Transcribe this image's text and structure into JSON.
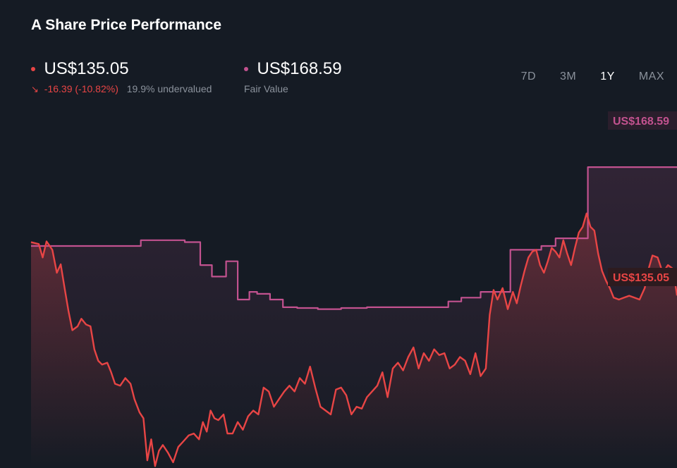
{
  "header": {
    "title": "A Share Price Performance"
  },
  "price": {
    "value": "US$135.05",
    "change": "-16.39 (-10.82%)",
    "valuation_note": "19.9% undervalued",
    "color": "#e84545",
    "icon": "arrow-down-right-icon"
  },
  "fair_value": {
    "value": "US$168.59",
    "label": "Fair Value",
    "color": "#c2528f"
  },
  "tabs": [
    {
      "label": "7D",
      "active": false
    },
    {
      "label": "3M",
      "active": false
    },
    {
      "label": "1Y",
      "active": true
    },
    {
      "label": "MAX",
      "active": false
    }
  ],
  "chart_data": {
    "type": "line",
    "xlim": [
      0,
      1
    ],
    "ylim": [
      90,
      185
    ],
    "series": [
      {
        "name": "Share Price",
        "color": "#e84545",
        "points": [
          [
            0.0,
            149.0
          ],
          [
            0.012,
            148.5
          ],
          [
            0.018,
            145.0
          ],
          [
            0.024,
            149.2
          ],
          [
            0.033,
            147.0
          ],
          [
            0.04,
            141.0
          ],
          [
            0.046,
            143.2
          ],
          [
            0.052,
            137.0
          ],
          [
            0.058,
            131.0
          ],
          [
            0.064,
            126.0
          ],
          [
            0.072,
            127.0
          ],
          [
            0.078,
            129.0
          ],
          [
            0.085,
            127.5
          ],
          [
            0.092,
            127.0
          ],
          [
            0.098,
            121.0
          ],
          [
            0.104,
            118.0
          ],
          [
            0.11,
            117.0
          ],
          [
            0.118,
            117.5
          ],
          [
            0.124,
            115.0
          ],
          [
            0.13,
            112.0
          ],
          [
            0.138,
            111.5
          ],
          [
            0.146,
            113.5
          ],
          [
            0.154,
            112.0
          ],
          [
            0.16,
            108.0
          ],
          [
            0.168,
            104.5
          ],
          [
            0.174,
            103.0
          ],
          [
            0.18,
            92.0
          ],
          [
            0.186,
            97.5
          ],
          [
            0.192,
            90.5
          ],
          [
            0.198,
            94.5
          ],
          [
            0.204,
            96.0
          ],
          [
            0.212,
            94.0
          ],
          [
            0.22,
            91.5
          ],
          [
            0.228,
            95.5
          ],
          [
            0.236,
            97.0
          ],
          [
            0.244,
            98.5
          ],
          [
            0.252,
            99.0
          ],
          [
            0.26,
            97.5
          ],
          [
            0.266,
            102.0
          ],
          [
            0.272,
            99.5
          ],
          [
            0.278,
            105.0
          ],
          [
            0.284,
            103.0
          ],
          [
            0.29,
            102.5
          ],
          [
            0.298,
            104.0
          ],
          [
            0.304,
            99.0
          ],
          [
            0.312,
            99.0
          ],
          [
            0.32,
            102.0
          ],
          [
            0.328,
            100.0
          ],
          [
            0.336,
            103.5
          ],
          [
            0.344,
            105.0
          ],
          [
            0.352,
            104.0
          ],
          [
            0.36,
            111.0
          ],
          [
            0.368,
            110.0
          ],
          [
            0.376,
            106.0
          ],
          [
            0.384,
            108.0
          ],
          [
            0.392,
            110.0
          ],
          [
            0.4,
            111.5
          ],
          [
            0.408,
            110.0
          ],
          [
            0.416,
            113.5
          ],
          [
            0.424,
            112.0
          ],
          [
            0.432,
            116.5
          ],
          [
            0.44,
            111.0
          ],
          [
            0.448,
            106.0
          ],
          [
            0.456,
            105.0
          ],
          [
            0.464,
            104.0
          ],
          [
            0.472,
            110.5
          ],
          [
            0.48,
            111.0
          ],
          [
            0.488,
            109.0
          ],
          [
            0.496,
            104.0
          ],
          [
            0.504,
            106.0
          ],
          [
            0.512,
            105.5
          ],
          [
            0.52,
            108.5
          ],
          [
            0.528,
            110.0
          ],
          [
            0.536,
            111.5
          ],
          [
            0.544,
            115.0
          ],
          [
            0.552,
            108.5
          ],
          [
            0.56,
            116.0
          ],
          [
            0.568,
            117.5
          ],
          [
            0.576,
            115.5
          ],
          [
            0.584,
            119.0
          ],
          [
            0.592,
            121.5
          ],
          [
            0.6,
            116.0
          ],
          [
            0.608,
            120.0
          ],
          [
            0.616,
            118.0
          ],
          [
            0.624,
            121.0
          ],
          [
            0.632,
            119.5
          ],
          [
            0.64,
            120.0
          ],
          [
            0.648,
            116.0
          ],
          [
            0.656,
            117.0
          ],
          [
            0.664,
            119.0
          ],
          [
            0.672,
            118.0
          ],
          [
            0.68,
            114.5
          ],
          [
            0.688,
            120.0
          ],
          [
            0.696,
            114.0
          ],
          [
            0.704,
            116.0
          ],
          [
            0.71,
            130.0
          ],
          [
            0.716,
            136.5
          ],
          [
            0.722,
            134.0
          ],
          [
            0.73,
            137.0
          ],
          [
            0.738,
            131.5
          ],
          [
            0.746,
            136.0
          ],
          [
            0.752,
            133.0
          ],
          [
            0.758,
            137.5
          ],
          [
            0.764,
            141.5
          ],
          [
            0.77,
            145.0
          ],
          [
            0.776,
            146.5
          ],
          [
            0.782,
            147.0
          ],
          [
            0.788,
            143.0
          ],
          [
            0.794,
            141.0
          ],
          [
            0.8,
            144.0
          ],
          [
            0.806,
            147.5
          ],
          [
            0.812,
            146.5
          ],
          [
            0.818,
            145.0
          ],
          [
            0.824,
            149.5
          ],
          [
            0.83,
            146.0
          ],
          [
            0.836,
            143.0
          ],
          [
            0.842,
            147.5
          ],
          [
            0.848,
            151.5
          ],
          [
            0.854,
            153.0
          ],
          [
            0.86,
            156.5
          ],
          [
            0.866,
            153.0
          ],
          [
            0.872,
            152.0
          ],
          [
            0.878,
            146.0
          ],
          [
            0.884,
            141.5
          ],
          [
            0.89,
            139.0
          ],
          [
            0.896,
            137.0
          ],
          [
            0.902,
            134.5
          ],
          [
            0.91,
            134.0
          ],
          [
            0.918,
            134.5
          ],
          [
            0.926,
            135.0
          ],
          [
            0.934,
            134.5
          ],
          [
            0.942,
            134.0
          ],
          [
            0.95,
            137.0
          ],
          [
            0.956,
            142.0
          ],
          [
            0.962,
            145.5
          ],
          [
            0.97,
            145.0
          ],
          [
            0.978,
            141.0
          ],
          [
            0.986,
            143.0
          ],
          [
            0.994,
            142.0
          ],
          [
            1.0,
            135.05
          ]
        ]
      },
      {
        "name": "Fair Value",
        "color": "#c2528f",
        "points": [
          [
            0.0,
            148.0
          ],
          [
            0.17,
            148.0
          ],
          [
            0.17,
            149.5
          ],
          [
            0.238,
            149.5
          ],
          [
            0.238,
            149.0
          ],
          [
            0.262,
            149.0
          ],
          [
            0.262,
            143.0
          ],
          [
            0.28,
            143.0
          ],
          [
            0.28,
            140.0
          ],
          [
            0.302,
            140.0
          ],
          [
            0.302,
            144.0
          ],
          [
            0.32,
            144.0
          ],
          [
            0.32,
            134.0
          ],
          [
            0.338,
            134.0
          ],
          [
            0.338,
            136.0
          ],
          [
            0.35,
            136.0
          ],
          [
            0.35,
            135.5
          ],
          [
            0.37,
            135.5
          ],
          [
            0.37,
            134.0
          ],
          [
            0.39,
            134.0
          ],
          [
            0.39,
            132.0
          ],
          [
            0.412,
            132.0
          ],
          [
            0.412,
            131.8
          ],
          [
            0.444,
            131.8
          ],
          [
            0.444,
            131.5
          ],
          [
            0.48,
            131.5
          ],
          [
            0.48,
            131.8
          ],
          [
            0.52,
            131.8
          ],
          [
            0.52,
            132.0
          ],
          [
            0.646,
            132.0
          ],
          [
            0.646,
            133.5
          ],
          [
            0.666,
            133.5
          ],
          [
            0.666,
            134.5
          ],
          [
            0.696,
            134.5
          ],
          [
            0.696,
            136.0
          ],
          [
            0.742,
            136.0
          ],
          [
            0.742,
            147.0
          ],
          [
            0.79,
            147.0
          ],
          [
            0.79,
            148.0
          ],
          [
            0.812,
            148.0
          ],
          [
            0.812,
            150.0
          ],
          [
            0.862,
            150.0
          ],
          [
            0.862,
            168.59
          ],
          [
            1.0,
            168.59
          ]
        ]
      }
    ],
    "end_labels": {
      "price": "US$135.05",
      "fair_value": "US$168.59"
    }
  }
}
